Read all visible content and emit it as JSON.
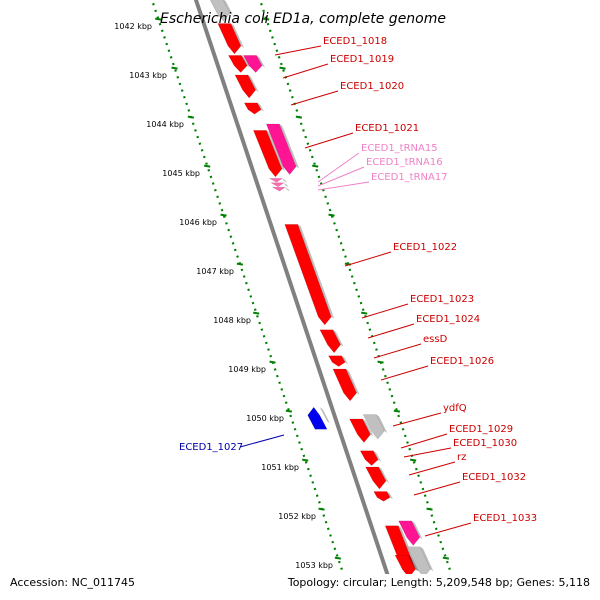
{
  "title": "Escherichia coli ED1a, complete genome",
  "footer": {
    "accession": "Accession: NC_011745",
    "summary": "Topology: circular; Length: 5,209,548 bp; Genes: 5,118"
  },
  "colors": {
    "gene_red": "#ff0000",
    "gene_pink": "#ff1493",
    "trna_pink": "#ff69b4",
    "gene_blue": "#0000ee",
    "gene_gray": "#c0c0c0",
    "axis": "#808080",
    "ruler": "#008000",
    "label_red": "#cc0000",
    "label_pink": "#ee82c8",
    "label_blue": "#0000aa"
  },
  "kbp_labels": [
    "1042 kbp",
    "1043 kbp",
    "1044 kbp",
    "1045 kbp",
    "1046 kbp",
    "1047 kbp",
    "1048 kbp",
    "1049 kbp",
    "1050 kbp",
    "1051 kbp",
    "1052 kbp",
    "1053 kbp"
  ],
  "gene_labels": [
    {
      "text": "ECED1_1018",
      "kind": "red"
    },
    {
      "text": "ECED1_1019",
      "kind": "red"
    },
    {
      "text": "ECED1_1020",
      "kind": "red"
    },
    {
      "text": "ECED1_1021",
      "kind": "red"
    },
    {
      "text": "ECED1_tRNA15",
      "kind": "pink"
    },
    {
      "text": "ECED1_tRNA16",
      "kind": "pink"
    },
    {
      "text": "ECED1_tRNA17",
      "kind": "pink"
    },
    {
      "text": "ECED1_1022",
      "kind": "red"
    },
    {
      "text": "ECED1_1023",
      "kind": "red"
    },
    {
      "text": "ECED1_1024",
      "kind": "red"
    },
    {
      "text": "essD",
      "kind": "red"
    },
    {
      "text": "ECED1_1026",
      "kind": "red"
    },
    {
      "text": "ydfQ",
      "kind": "red"
    },
    {
      "text": "ECED1_1029",
      "kind": "red"
    },
    {
      "text": "ECED1_1030",
      "kind": "red"
    },
    {
      "text": "rz",
      "kind": "red"
    },
    {
      "text": "ECED1_1032",
      "kind": "red"
    },
    {
      "text": "ECED1_1033",
      "kind": "red"
    },
    {
      "text": "ECED1_1027",
      "kind": "blue"
    }
  ],
  "features": [
    {
      "type": "gene",
      "strand": "+",
      "track": 0,
      "color": "gray",
      "start": 1041.6,
      "end": 1042.05
    },
    {
      "type": "gene",
      "strand": "+",
      "track": 0,
      "color": "red",
      "start": 1042.1,
      "end": 1042.72
    },
    {
      "type": "gene",
      "strand": "+",
      "track": 0,
      "color": "red",
      "start": 1042.75,
      "end": 1043.1
    },
    {
      "type": "gene",
      "strand": "+",
      "track": 1,
      "color": "pink",
      "start": 1042.75,
      "end": 1043.1
    },
    {
      "type": "gene",
      "strand": "+",
      "track": 0,
      "color": "red",
      "start": 1043.15,
      "end": 1043.62
    },
    {
      "type": "gene",
      "strand": "+",
      "track": 0,
      "color": "red",
      "start": 1043.72,
      "end": 1043.95
    },
    {
      "type": "gene",
      "strand": "+",
      "track": 0,
      "color": "red",
      "start": 1044.28,
      "end": 1045.23
    },
    {
      "type": "gene",
      "strand": "+",
      "track": 1,
      "color": "pink",
      "start": 1044.15,
      "end": 1045.18
    },
    {
      "type": "tRNA",
      "strand": "+",
      "track": 0,
      "color": "trna",
      "start": 1045.26,
      "end": 1045.34
    },
    {
      "type": "tRNA",
      "strand": "+",
      "track": 0,
      "color": "trna",
      "start": 1045.35,
      "end": 1045.43
    },
    {
      "type": "tRNA",
      "strand": "+",
      "track": 0,
      "color": "trna",
      "start": 1045.44,
      "end": 1045.52
    },
    {
      "type": "gene",
      "strand": "+",
      "track": 0,
      "color": "red",
      "start": 1046.2,
      "end": 1048.25
    },
    {
      "type": "gene",
      "strand": "+",
      "track": 0,
      "color": "red",
      "start": 1048.35,
      "end": 1048.82
    },
    {
      "type": "gene",
      "strand": "+",
      "track": 0,
      "color": "red",
      "start": 1048.88,
      "end": 1049.1
    },
    {
      "type": "gene",
      "strand": "+",
      "track": 0,
      "color": "red",
      "start": 1049.15,
      "end": 1049.8
    },
    {
      "type": "gene",
      "strand": "-",
      "track": 0,
      "color": "blue",
      "start": 1049.93,
      "end": 1050.38
    },
    {
      "type": "gene",
      "strand": "+",
      "track": 0,
      "color": "red",
      "start": 1050.17,
      "end": 1050.65
    },
    {
      "type": "gene",
      "strand": "+",
      "track": 1,
      "color": "gray",
      "start": 1050.08,
      "end": 1050.58
    },
    {
      "type": "gene",
      "strand": "+",
      "track": 0,
      "color": "red",
      "start": 1050.82,
      "end": 1051.12
    },
    {
      "type": "gene",
      "strand": "+",
      "track": 0,
      "color": "red",
      "start": 1051.15,
      "end": 1051.6
    },
    {
      "type": "gene",
      "strand": "+",
      "track": 0,
      "color": "red",
      "start": 1051.65,
      "end": 1051.85
    },
    {
      "type": "gene",
      "strand": "+",
      "track": 0,
      "color": "red",
      "start": 1052.35,
      "end": 1053.4
    },
    {
      "type": "gene",
      "strand": "+",
      "track": 1,
      "color": "pink",
      "start": 1052.25,
      "end": 1052.75
    },
    {
      "type": "gene",
      "strand": "+",
      "track": 1,
      "color": "gray",
      "start": 1052.78,
      "end": 1053.4
    },
    {
      "type": "gene",
      "strand": "+",
      "track": 0,
      "color": "red",
      "start": 1052.95,
      "end": 1053.4
    }
  ]
}
